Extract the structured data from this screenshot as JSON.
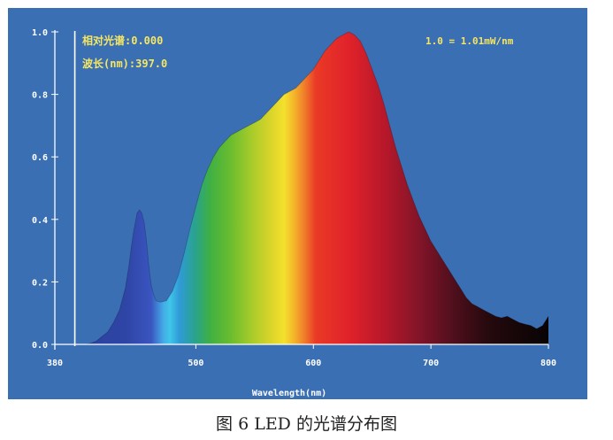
{
  "chart_data": {
    "type": "area",
    "title": "",
    "xlabel": "Wavelength(nm)",
    "ylabel": "",
    "xlim": [
      380,
      800
    ],
    "ylim": [
      0,
      1.0
    ],
    "x_ticks": [
      "380",
      "500",
      "600",
      "700",
      "800"
    ],
    "y_ticks": [
      "0.0",
      "0.2",
      "0.4",
      "0.6",
      "0.8",
      "1.0"
    ],
    "cursor_readout": {
      "line1": "相对光谱:0.000",
      "line2": "波长(nm):397.0"
    },
    "scale_note": "1.0 = 1.01mW/nm",
    "grid": false,
    "series": [
      {
        "x": [
          380,
          400,
          405,
          410,
          415,
          420,
          425,
          430,
          435,
          440,
          443,
          445,
          447,
          449,
          450,
          452,
          454,
          456,
          458,
          460,
          462,
          464,
          466,
          470,
          475,
          480,
          485,
          490,
          495,
          500,
          505,
          510,
          515,
          520,
          525,
          530,
          535,
          540,
          545,
          550,
          555,
          560,
          565,
          570,
          575,
          580,
          585,
          590,
          595,
          600,
          605,
          610,
          615,
          620,
          625,
          630,
          635,
          640,
          645,
          650,
          655,
          660,
          665,
          670,
          675,
          680,
          685,
          690,
          695,
          700,
          705,
          710,
          715,
          720,
          725,
          730,
          735,
          740,
          745,
          750,
          755,
          760,
          765,
          770,
          775,
          780,
          785,
          790,
          795,
          800
        ],
        "y": [
          0.0,
          0.0,
          0.0,
          0.003,
          0.01,
          0.025,
          0.04,
          0.07,
          0.11,
          0.18,
          0.25,
          0.31,
          0.36,
          0.4,
          0.42,
          0.43,
          0.42,
          0.39,
          0.33,
          0.25,
          0.19,
          0.16,
          0.14,
          0.135,
          0.14,
          0.17,
          0.22,
          0.29,
          0.37,
          0.44,
          0.51,
          0.56,
          0.6,
          0.63,
          0.65,
          0.67,
          0.68,
          0.69,
          0.7,
          0.71,
          0.72,
          0.74,
          0.76,
          0.78,
          0.8,
          0.81,
          0.82,
          0.84,
          0.86,
          0.88,
          0.91,
          0.94,
          0.96,
          0.98,
          0.99,
          1.0,
          0.99,
          0.97,
          0.93,
          0.88,
          0.83,
          0.77,
          0.7,
          0.63,
          0.57,
          0.51,
          0.46,
          0.41,
          0.37,
          0.33,
          0.3,
          0.27,
          0.24,
          0.21,
          0.18,
          0.15,
          0.13,
          0.12,
          0.11,
          0.1,
          0.09,
          0.085,
          0.09,
          0.08,
          0.07,
          0.065,
          0.06,
          0.05,
          0.06,
          0.09
        ]
      }
    ]
  },
  "caption": "图 6 LED 的光谱分布图",
  "colors": {
    "background": "#3a6fb4",
    "axis": "#ffffff",
    "tick_labels": "#ffffff",
    "readout_text": "#f5e663"
  }
}
